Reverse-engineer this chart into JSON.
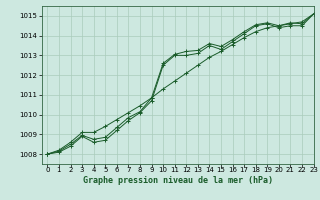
{
  "xlabel": "Graphe pression niveau de la mer (hPa)",
  "ylim": [
    1007.5,
    1015.5
  ],
  "xlim": [
    -0.5,
    23
  ],
  "yticks": [
    1008,
    1009,
    1010,
    1011,
    1012,
    1013,
    1014,
    1015
  ],
  "xticks": [
    0,
    1,
    2,
    3,
    4,
    5,
    6,
    7,
    8,
    9,
    10,
    11,
    12,
    13,
    14,
    15,
    16,
    17,
    18,
    19,
    20,
    21,
    22,
    23
  ],
  "bg_color": "#cde8e0",
  "grid_color": "#aaccbb",
  "line_color": "#1a5c2a",
  "line1_x": [
    0,
    1,
    2,
    3,
    4,
    5,
    6,
    7,
    8,
    9,
    10,
    11,
    12,
    13,
    14,
    15,
    16,
    17,
    18,
    19,
    20,
    21,
    22,
    23
  ],
  "line1_y": [
    1008.0,
    1008.1,
    1008.4,
    1008.9,
    1008.6,
    1008.7,
    1009.2,
    1009.7,
    1010.1,
    1010.7,
    1012.5,
    1013.0,
    1013.0,
    1013.1,
    1013.5,
    1013.3,
    1013.7,
    1014.1,
    1014.5,
    1014.6,
    1014.4,
    1014.5,
    1014.5,
    1015.1
  ],
  "line2_x": [
    0,
    1,
    2,
    3,
    4,
    5,
    6,
    7,
    8,
    9,
    10,
    11,
    12,
    13,
    14,
    15,
    16,
    17,
    18,
    19,
    20,
    21,
    22,
    23
  ],
  "line2_y": [
    1008.0,
    1008.15,
    1008.5,
    1008.95,
    1008.75,
    1008.85,
    1009.35,
    1009.85,
    1010.15,
    1010.85,
    1012.6,
    1013.05,
    1013.2,
    1013.25,
    1013.6,
    1013.45,
    1013.8,
    1014.2,
    1014.55,
    1014.65,
    1014.5,
    1014.65,
    1014.6,
    1015.1
  ],
  "line3_x": [
    0,
    1,
    2,
    3,
    4,
    5,
    6,
    7,
    8,
    9,
    10,
    11,
    12,
    13,
    14,
    15,
    16,
    17,
    18,
    19,
    20,
    21,
    22,
    23
  ],
  "line3_y": [
    1008.0,
    1008.2,
    1008.6,
    1009.1,
    1009.1,
    1009.4,
    1009.75,
    1010.1,
    1010.45,
    1010.85,
    1011.3,
    1011.7,
    1012.1,
    1012.5,
    1012.9,
    1013.2,
    1013.55,
    1013.9,
    1014.2,
    1014.4,
    1014.5,
    1014.6,
    1014.7,
    1015.1
  ],
  "tick_fontsize": 5.0,
  "label_fontsize": 6.0,
  "label_fontweight": "bold",
  "linewidth": 0.7,
  "markersize": 3.0,
  "markeredgewidth": 0.7
}
